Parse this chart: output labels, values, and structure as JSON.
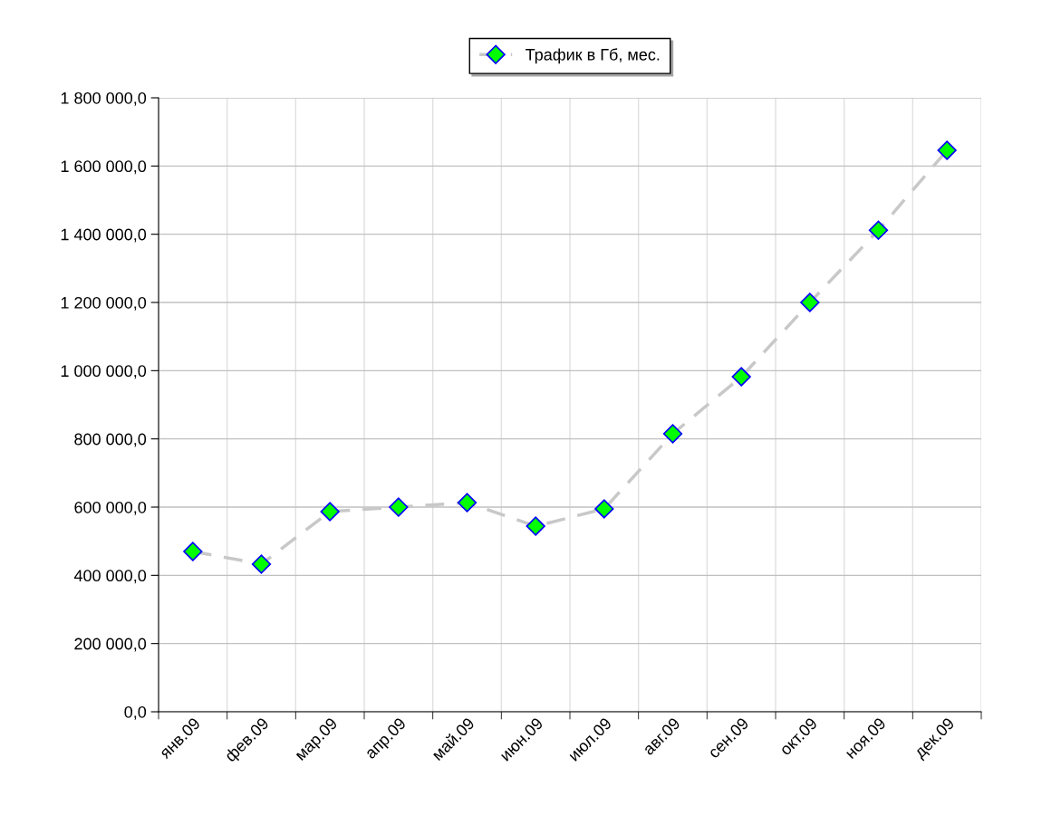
{
  "chart_data": {
    "type": "line",
    "categories": [
      "янв.09",
      "фев.09",
      "мар.09",
      "апр.09",
      "май.09",
      "июн.09",
      "июл.09",
      "авг.09",
      "сен.09",
      "окт.09",
      "ноя.09",
      "дек.09"
    ],
    "series": [
      {
        "name": "Трафик в Гб, мес.",
        "color": "#00ff00",
        "values": [
          470000,
          433000,
          587000,
          600000,
          613000,
          544000,
          595000,
          815000,
          982000,
          1200000,
          1412000,
          1646000
        ]
      }
    ],
    "ylim": [
      0,
      1800000
    ],
    "yticks": [
      {
        "value": 0,
        "label": "0,0"
      },
      {
        "value": 200000,
        "label": "200 000,0"
      },
      {
        "value": 400000,
        "label": "400 000,0"
      },
      {
        "value": 600000,
        "label": "600 000,0"
      },
      {
        "value": 800000,
        "label": "800 000,0"
      },
      {
        "value": 1000000,
        "label": "1 000 000,0"
      },
      {
        "value": 1200000,
        "label": "1 200 000,0"
      },
      {
        "value": 1400000,
        "label": "1 400 000,0"
      },
      {
        "value": 1600000,
        "label": "1 600 000,0"
      },
      {
        "value": 1800000,
        "label": "1 800 000,0"
      }
    ],
    "grid": true,
    "legend": "top",
    "marker": "diamond",
    "line_style": "dashed"
  }
}
